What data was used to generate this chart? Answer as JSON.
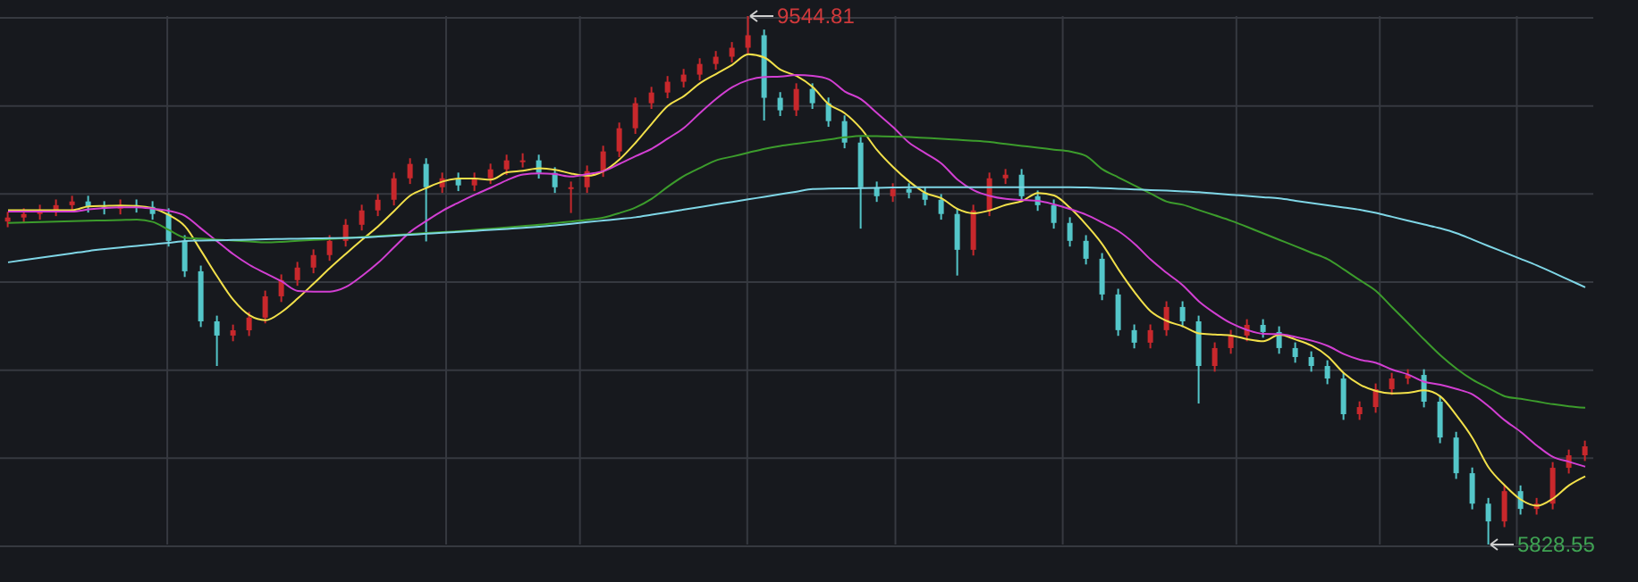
{
  "chart_data": {
    "type": "candlestick",
    "grid": true,
    "categories": [
      null,
      null,
      null,
      null,
      null,
      null,
      null,
      null,
      null,
      null,
      null,
      null,
      null,
      null,
      null,
      null,
      null,
      null,
      null,
      null,
      null,
      null,
      null,
      null,
      null,
      null,
      null,
      null,
      null,
      null,
      null,
      null,
      null,
      null,
      null,
      null,
      null,
      null,
      null,
      null,
      null,
      null,
      null,
      null,
      null,
      null,
      null,
      null,
      null,
      null,
      null,
      null,
      null,
      null,
      null,
      null,
      null,
      null,
      null,
      null,
      null,
      null,
      null,
      null,
      null,
      null,
      null,
      null,
      null,
      null,
      null,
      null,
      null,
      null,
      null,
      null,
      null,
      null,
      null,
      null,
      null,
      null,
      null,
      null,
      null,
      null,
      null,
      null,
      null,
      null,
      null,
      null,
      null,
      null,
      null,
      null,
      null,
      null,
      null
    ],
    "colors": [
      "#c8282c",
      "#c8282c",
      "#c8282c",
      "#c8282c",
      "#c8282c",
      "#54c6c9",
      "#54c6c9",
      "#c8282c",
      "#54c6c9",
      "#54c6c9",
      "#54c6c9",
      "#54c6c9",
      "#54c6c9",
      "#54c6c9",
      "#c8282c",
      "#c8282c",
      "#c8282c",
      "#c8282c",
      "#c8282c",
      "#c8282c",
      "#c8282c",
      "#c8282c",
      "#c8282c",
      "#c8282c",
      "#c8282c",
      "#c8282c",
      "#54c6c9",
      "#c8282c",
      "#54c6c9",
      "#c8282c",
      "#c8282c",
      "#c8282c",
      "#c8282c",
      "#54c6c9",
      "#54c6c9",
      "#c8282c",
      "#c8282c",
      "#c8282c",
      "#c8282c",
      "#c8282c",
      "#c8282c",
      "#c8282c",
      "#c8282c",
      "#c8282c",
      "#c8282c",
      "#c8282c",
      "#c8282c",
      "#54c6c9",
      "#54c6c9",
      "#c8282c",
      "#54c6c9",
      "#54c6c9",
      "#54c6c9",
      "#54c6c9",
      "#54c6c9",
      "#c8282c",
      "#54c6c9",
      "#54c6c9",
      "#54c6c9",
      "#54c6c9",
      "#c8282c",
      "#c8282c",
      "#c8282c",
      "#54c6c9",
      "#54c6c9",
      "#54c6c9",
      "#54c6c9",
      "#54c6c9",
      "#54c6c9",
      "#54c6c9",
      "#54c6c9",
      "#c8282c",
      "#c8282c",
      "#54c6c9",
      "#54c6c9",
      "#c8282c",
      "#c8282c",
      "#c8282c",
      "#54c6c9",
      "#54c6c9",
      "#54c6c9",
      "#54c6c9",
      "#54c6c9",
      "#54c6c9",
      "#c8282c",
      "#c8282c",
      "#c8282c",
      "#c8282c",
      "#54c6c9",
      "#54c6c9",
      "#54c6c9",
      "#54c6c9",
      "#54c6c9",
      "#c8282c",
      "#54c6c9",
      "#c8282c",
      "#c8282c",
      "#c8282c",
      "#c8282c"
    ],
    "ohlc": [
      [
        8100,
        8168,
        8060,
        8128
      ],
      [
        8128,
        8193,
        8088,
        8153
      ],
      [
        8153,
        8218,
        8113,
        8178
      ],
      [
        8178,
        8255,
        8138,
        8215
      ],
      [
        8215,
        8281,
        8175,
        8241
      ],
      [
        8241,
        8281,
        8163,
        8203
      ],
      [
        8203,
        8243,
        8150,
        8190
      ],
      [
        8190,
        8255,
        8150,
        8215
      ],
      [
        8215,
        8255,
        8163,
        8203
      ],
      [
        8203,
        8243,
        8113,
        8153
      ],
      [
        8153,
        8193,
        7924,
        7964
      ],
      [
        7964,
        8004,
        7710,
        7750
      ],
      [
        7750,
        7790,
        7358,
        7398
      ],
      [
        7398,
        7438,
        7084,
        7298
      ],
      [
        7298,
        7375,
        7258,
        7335
      ],
      [
        7335,
        7464,
        7295,
        7424
      ],
      [
        7424,
        7614,
        7384,
        7574
      ],
      [
        7574,
        7728,
        7534,
        7688
      ],
      [
        7688,
        7816,
        7648,
        7776
      ],
      [
        7776,
        7904,
        7736,
        7864
      ],
      [
        7864,
        8004,
        7824,
        7964
      ],
      [
        7964,
        8117,
        7924,
        8077
      ],
      [
        8077,
        8218,
        8037,
        8178
      ],
      [
        8178,
        8293,
        8138,
        8253
      ],
      [
        8253,
        8444,
        8213,
        8404
      ],
      [
        8404,
        8545,
        8364,
        8505
      ],
      [
        8505,
        8545,
        7960,
        8341
      ],
      [
        8341,
        8444,
        8301,
        8404
      ],
      [
        8404,
        8444,
        8314,
        8354
      ],
      [
        8354,
        8444,
        8314,
        8404
      ],
      [
        8404,
        8507,
        8364,
        8467
      ],
      [
        8467,
        8570,
        8427,
        8530
      ],
      [
        8530,
        8580,
        8480,
        8530
      ],
      [
        8530,
        8570,
        8402,
        8442
      ],
      [
        8442,
        8482,
        8301,
        8341
      ],
      [
        8341,
        8381,
        8160,
        8341
      ],
      [
        8341,
        8494,
        8301,
        8454
      ],
      [
        8454,
        8633,
        8414,
        8593
      ],
      [
        8593,
        8796,
        8553,
        8756
      ],
      [
        8756,
        8972,
        8716,
        8932
      ],
      [
        8932,
        9047,
        8892,
        9007
      ],
      [
        9007,
        9123,
        8967,
        9083
      ],
      [
        9083,
        9173,
        9043,
        9133
      ],
      [
        9133,
        9248,
        9093,
        9208
      ],
      [
        9208,
        9299,
        9168,
        9259
      ],
      [
        9259,
        9362,
        9219,
        9322
      ],
      [
        9322,
        9544.81,
        9282,
        9410
      ],
      [
        9410,
        9450,
        8810,
        8970
      ],
      [
        8970,
        9010,
        8842,
        8882
      ],
      [
        8882,
        9072,
        8842,
        9032
      ],
      [
        9032,
        9072,
        8892,
        8932
      ],
      [
        8932,
        8972,
        8766,
        8806
      ],
      [
        8806,
        8846,
        8615,
        8655
      ],
      [
        8655,
        8695,
        8050,
        8341
      ],
      [
        8341,
        8381,
        8238,
        8278
      ],
      [
        8278,
        8369,
        8238,
        8329
      ],
      [
        8329,
        8369,
        8263,
        8303
      ],
      [
        8303,
        8343,
        8213,
        8253
      ],
      [
        8253,
        8293,
        8113,
        8153
      ],
      [
        8153,
        8193,
        7720,
        7901
      ],
      [
        7901,
        8218,
        7861,
        8178
      ],
      [
        8178,
        8444,
        8138,
        8404
      ],
      [
        8404,
        8469,
        8364,
        8429
      ],
      [
        8429,
        8469,
        8238,
        8278
      ],
      [
        8278,
        8318,
        8175,
        8215
      ],
      [
        8215,
        8255,
        8050,
        8090
      ],
      [
        8090,
        8130,
        7924,
        7964
      ],
      [
        7964,
        8004,
        7798,
        7838
      ],
      [
        7838,
        7878,
        7547,
        7587
      ],
      [
        7587,
        7627,
        7296,
        7336
      ],
      [
        7336,
        7376,
        7208,
        7248
      ],
      [
        7248,
        7376,
        7208,
        7336
      ],
      [
        7336,
        7539,
        7296,
        7499
      ],
      [
        7499,
        7539,
        7358,
        7398
      ],
      [
        7398,
        7438,
        6820,
        7084
      ],
      [
        7084,
        7250,
        7044,
        7210
      ],
      [
        7210,
        7338,
        7170,
        7298
      ],
      [
        7298,
        7413,
        7258,
        7373
      ],
      [
        7373,
        7413,
        7283,
        7323
      ],
      [
        7323,
        7363,
        7170,
        7210
      ],
      [
        7210,
        7250,
        7107,
        7147
      ],
      [
        7147,
        7187,
        7044,
        7084
      ],
      [
        7084,
        7124,
        6956,
        6996
      ],
      [
        6996,
        7036,
        6705,
        6745
      ],
      [
        6745,
        6835,
        6705,
        6795
      ],
      [
        6795,
        6961,
        6755,
        6921
      ],
      [
        6921,
        7036,
        6881,
        6996
      ],
      [
        6996,
        7061,
        6956,
        7021
      ],
      [
        7021,
        7061,
        6793,
        6833
      ],
      [
        6833,
        6873,
        6541,
        6581
      ],
      [
        6581,
        6621,
        6290,
        6330
      ],
      [
        6330,
        6370,
        6076,
        6116
      ],
      [
        6116,
        6156,
        5828.55,
        5991
      ],
      [
        5991,
        6244,
        5951,
        6204
      ],
      [
        6204,
        6244,
        6039,
        6079
      ],
      [
        6079,
        6156,
        6039,
        6116
      ],
      [
        6116,
        6408,
        6076,
        6368
      ],
      [
        6368,
        6496,
        6328,
        6456
      ],
      [
        6456,
        6559,
        6416,
        6519
      ]
    ],
    "series": [
      {
        "type": "line",
        "color": "#f2e04a",
        "values": [
          8180,
          8180,
          8180,
          8180,
          8180,
          8206,
          8210,
          8213,
          8210,
          8193,
          8145,
          8066,
          7893,
          7713,
          7549,
          7441,
          7406,
          7464,
          7559,
          7665,
          7773,
          7874,
          7972,
          8067,
          8175,
          8283,
          8336,
          8381,
          8402,
          8402,
          8394,
          8446,
          8457,
          8475,
          8464,
          8437,
          8422,
          8454,
          8537,
          8655,
          8788,
          8914,
          8982,
          9073,
          9138,
          9202,
          9276,
          9253,
          9167,
          9123,
          9045,
          8924,
          8861,
          8753,
          8602,
          8482,
          8381,
          8301,
          8263,
          8188,
          8158,
          8178,
          8217,
          8244,
          8301,
          8283,
          8195,
          8077,
          7939,
          7763,
          7603,
          7469,
          7401,
          7363,
          7313,
          7305,
          7298,
          7273,
          7258,
          7303,
          7270,
          7227,
          7152,
          7034,
          6953,
          6908,
          6891,
          6896,
          6913,
          6870,
          6736,
          6576,
          6370,
          6244,
          6144,
          6101,
          6152,
          6245,
          6308
        ]
      },
      {
        "type": "line",
        "color": "#d23fd2",
        "values": [
          8170,
          8170,
          8170,
          8170,
          8170,
          8185,
          8195,
          8200,
          8200,
          8190,
          8175,
          8140,
          8050,
          7960,
          7870,
          7795,
          7736,
          7679,
          7612,
          7607,
          7607,
          7640,
          7718,
          7810,
          7920,
          8028,
          8105,
          8176,
          8234,
          8288,
          8338,
          8391,
          8430,
          8438,
          8433,
          8416,
          8434,
          8455,
          8506,
          8560,
          8612,
          8684,
          8759,
          8864,
          8963,
          9045,
          9095,
          9117,
          9120,
          9130,
          9124,
          9100,
          9014,
          8960,
          8862,
          8763,
          8653,
          8581,
          8508,
          8395,
          8320,
          8280,
          8259,
          8252,
          8245,
          8220,
          8187,
          8147,
          8092,
          8032,
          7943,
          7832,
          7738,
          7651,
          7538,
          7454,
          7384,
          7337,
          7310,
          7308,
          7288,
          7262,
          7225,
          7168,
          7128,
          7106,
          7059,
          7024,
          6973,
          6952,
          6922,
          6884,
          6800,
          6702,
          6620,
          6524,
          6444,
          6410,
          6376
        ]
      },
      {
        "type": "line",
        "color": "#3c9c2c",
        "values": [
          8090,
          8093,
          8096,
          8099,
          8102,
          8105,
          8108,
          8111,
          8114,
          8097,
          8040,
          7987,
          7980,
          7973,
          7966,
          7960,
          7953,
          7957,
          7964,
          7970,
          7977,
          7984,
          7991,
          7998,
          8005,
          8012,
          8019,
          8025,
          8032,
          8041,
          8050,
          8059,
          8068,
          8077,
          8089,
          8100,
          8112,
          8128,
          8160,
          8199,
          8260,
          8345,
          8420,
          8477,
          8530,
          8557,
          8584,
          8611,
          8632,
          8647,
          8662,
          8677,
          8692,
          8702,
          8700,
          8698,
          8694,
          8688,
          8682,
          8675,
          8668,
          8659,
          8645,
          8632,
          8619,
          8605,
          8592,
          8560,
          8467,
          8410,
          8353,
          8297,
          8240,
          8218,
          8180,
          8143,
          8105,
          8062,
          8016,
          7971,
          7926,
          7880,
          7835,
          7763,
          7687,
          7612,
          7497,
          7384,
          7269,
          7159,
          7065,
          6987,
          6928,
          6871,
          6853,
          6834,
          6815,
          6800,
          6790
        ]
      },
      {
        "type": "line",
        "color": "#7fd6e6",
        "values": [
          7813,
          7829,
          7845,
          7861,
          7877,
          7893,
          7906,
          7917,
          7929,
          7940,
          7951,
          7963,
          7966,
          7968,
          7970,
          7972,
          7975,
          7977,
          7979,
          7981,
          7983,
          7985,
          7988,
          7994,
          8000,
          8007,
          8014,
          8021,
          8027,
          8034,
          8041,
          8048,
          8055,
          8063,
          8073,
          8084,
          8096,
          8107,
          8118,
          8130,
          8148,
          8166,
          8184,
          8202,
          8220,
          8238,
          8256,
          8274,
          8292,
          8310,
          8329,
          8331,
          8333,
          8335,
          8337,
          8339,
          8341,
          8341,
          8341,
          8341,
          8341,
          8341,
          8341,
          8341,
          8341,
          8341,
          8341,
          8339,
          8335,
          8330,
          8326,
          8321,
          8317,
          8312,
          8306,
          8297,
          8288,
          8280,
          8271,
          8262,
          8246,
          8230,
          8214,
          8198,
          8182,
          8160,
          8133,
          8106,
          8079,
          8052,
          8018,
          7973,
          7927,
          7882,
          7837,
          7791,
          7741,
          7689,
          7637
        ]
      }
    ],
    "annotations": [
      "9544.81",
      "5828.55"
    ]
  }
}
